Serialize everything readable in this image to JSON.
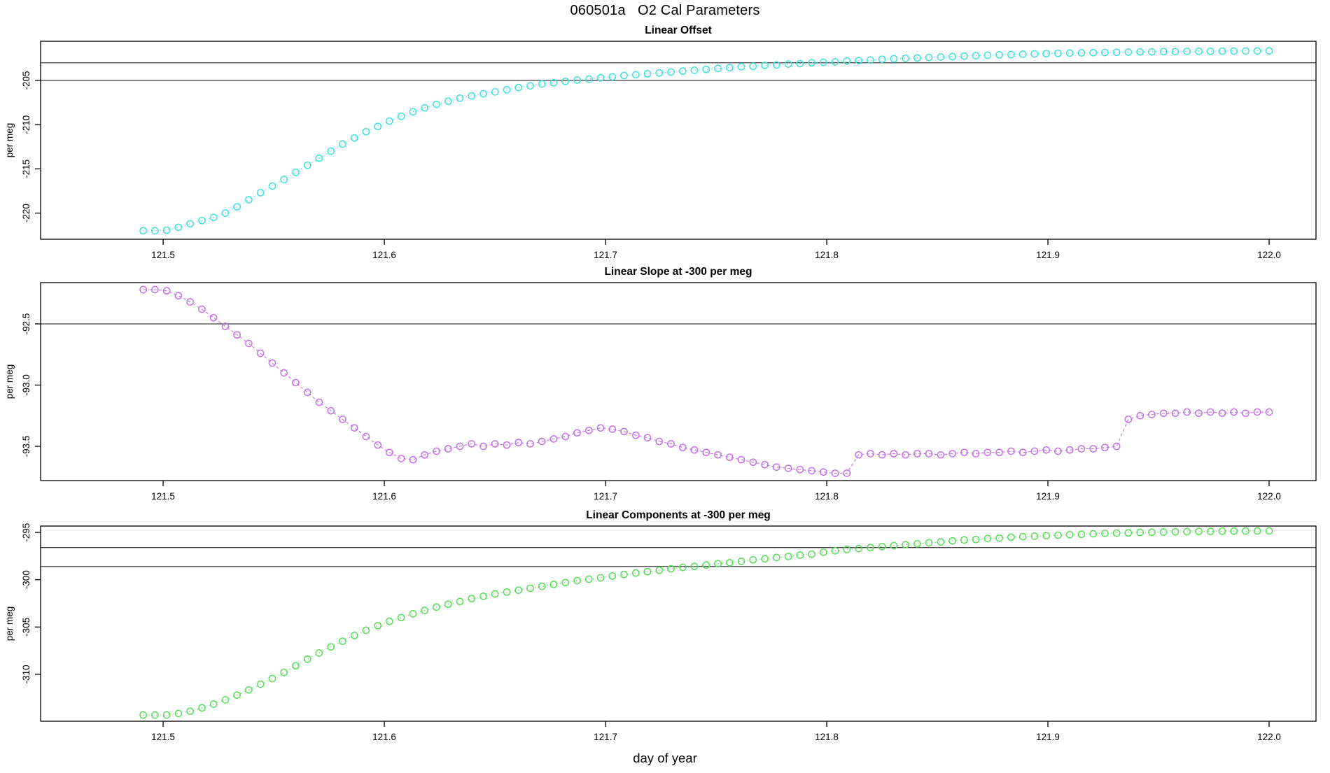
{
  "page_title": "060501a   O2 Cal Parameters",
  "xlabel": "day of year",
  "ylabel": "per meg",
  "axis_color": "#000000",
  "ref_line_color": "#3c3c3c",
  "chart_data": [
    {
      "type": "scatter",
      "title": "Linear Offset",
      "series_name": "linear-offset",
      "ylabel": "per meg",
      "color": "#3fe0e0",
      "line_style": "dotted",
      "xlim": [
        121.4446,
        122.0212
      ],
      "ylim": [
        -222.96,
        -200.57
      ],
      "x_ticks": {
        "values": [
          121.5,
          121.6,
          121.7,
          121.8,
          121.9,
          122.0
        ],
        "labels": [
          "121.5",
          "121.6",
          "121.7",
          "121.8",
          "121.9",
          "122.0"
        ]
      },
      "y_ticks": {
        "values": [
          -205,
          -210,
          -215,
          -220
        ],
        "labels": [
          "-205",
          "-210",
          "-215",
          "-220"
        ]
      },
      "ref_lines": [
        -203.0,
        -205.0
      ],
      "x_start": 121.491,
      "x_step": 0.005302,
      "values": [
        -222.0,
        -222.0,
        -221.95,
        -221.6,
        -221.2,
        -220.85,
        -220.5,
        -220.0,
        -219.3,
        -218.5,
        -217.7,
        -216.95,
        -216.2,
        -215.4,
        -214.6,
        -213.8,
        -213.0,
        -212.2,
        -211.5,
        -210.8,
        -210.2,
        -209.6,
        -209.05,
        -208.55,
        -208.1,
        -207.7,
        -207.35,
        -207.0,
        -206.75,
        -206.5,
        -206.3,
        -206.05,
        -205.8,
        -205.6,
        -205.4,
        -205.25,
        -205.1,
        -204.95,
        -204.85,
        -204.7,
        -204.6,
        -204.45,
        -204.35,
        -204.25,
        -204.15,
        -204.05,
        -203.95,
        -203.85,
        -203.75,
        -203.65,
        -203.55,
        -203.45,
        -203.4,
        -203.3,
        -203.25,
        -203.15,
        -203.1,
        -203.0,
        -202.95,
        -202.9,
        -202.8,
        -202.75,
        -202.7,
        -202.6,
        -202.55,
        -202.5,
        -202.45,
        -202.4,
        -202.35,
        -202.3,
        -202.25,
        -202.2,
        -202.15,
        -202.1,
        -202.07,
        -202.03,
        -202.0,
        -201.97,
        -201.94,
        -201.91,
        -201.88,
        -201.86,
        -201.84,
        -201.82,
        -201.8,
        -201.78,
        -201.77,
        -201.75,
        -201.74,
        -201.72,
        -201.71,
        -201.7,
        -201.69,
        -201.68,
        -201.67,
        -201.66,
        -201.65
      ]
    },
    {
      "type": "scatter",
      "title": "Linear Slope at -300 per meg",
      "series_name": "linear-slope",
      "ylabel": "per meg",
      "color": "#c96feb",
      "line_style": "dashed",
      "xlim": [
        121.4446,
        122.0212
      ],
      "ylim": [
        -93.78,
        -92.163
      ],
      "x_ticks": {
        "values": [
          121.5,
          121.6,
          121.7,
          121.8,
          121.9,
          122.0
        ],
        "labels": [
          "121.5",
          "121.6",
          "121.7",
          "121.8",
          "121.9",
          "122.0"
        ]
      },
      "y_ticks": {
        "values": [
          -92.5,
          -93.0,
          -93.5
        ],
        "labels": [
          "-92.5",
          "-93.0",
          "-93.5"
        ]
      },
      "ref_lines": [
        -92.5
      ],
      "x_start": 121.491,
      "x_step": 0.005302,
      "values": [
        -92.22,
        -92.22,
        -92.23,
        -92.27,
        -92.32,
        -92.38,
        -92.45,
        -92.52,
        -92.59,
        -92.66,
        -92.74,
        -92.82,
        -92.9,
        -92.98,
        -93.06,
        -93.14,
        -93.21,
        -93.28,
        -93.35,
        -93.42,
        -93.49,
        -93.55,
        -93.6,
        -93.61,
        -93.57,
        -93.54,
        -93.52,
        -93.5,
        -93.48,
        -93.5,
        -93.48,
        -93.49,
        -93.47,
        -93.48,
        -93.46,
        -93.44,
        -93.42,
        -93.39,
        -93.37,
        -93.35,
        -93.36,
        -93.38,
        -93.41,
        -93.43,
        -93.46,
        -93.48,
        -93.51,
        -93.53,
        -93.55,
        -93.57,
        -93.59,
        -93.61,
        -93.63,
        -93.65,
        -93.67,
        -93.68,
        -93.69,
        -93.7,
        -93.71,
        -93.72,
        -93.72,
        -93.57,
        -93.56,
        -93.57,
        -93.56,
        -93.57,
        -93.56,
        -93.56,
        -93.57,
        -93.56,
        -93.55,
        -93.56,
        -93.55,
        -93.55,
        -93.54,
        -93.55,
        -93.54,
        -93.53,
        -93.54,
        -93.53,
        -93.52,
        -93.52,
        -93.51,
        -93.5,
        -93.28,
        -93.25,
        -93.24,
        -93.23,
        -93.23,
        -93.22,
        -93.23,
        -93.22,
        -93.23,
        -93.22,
        -93.23,
        -93.22,
        -93.22
      ]
    },
    {
      "type": "scatter",
      "title": "Linear Components at -300 per meg",
      "series_name": "linear-components",
      "ylabel": "per meg",
      "color": "#56de56",
      "line_style": "dotted",
      "xlim": [
        121.4446,
        122.0212
      ],
      "ylim": [
        -314.96,
        -294.33
      ],
      "x_ticks": {
        "values": [
          121.5,
          121.6,
          121.7,
          121.8,
          121.9,
          122.0
        ],
        "labels": [
          "121.5",
          "121.6",
          "121.7",
          "121.8",
          "121.9",
          "122.0"
        ]
      },
      "y_ticks": {
        "values": [
          -295,
          -300,
          -305,
          -310
        ],
        "labels": [
          "-295",
          "-300",
          "-305",
          "-310"
        ]
      },
      "ref_lines": [
        -296.6,
        -298.6
      ],
      "x_start": 121.491,
      "x_step": 0.005302,
      "values": [
        -314.3,
        -314.3,
        -314.3,
        -314.15,
        -313.9,
        -313.55,
        -313.15,
        -312.7,
        -312.2,
        -311.65,
        -311.05,
        -310.45,
        -309.8,
        -309.1,
        -308.4,
        -307.75,
        -307.1,
        -306.5,
        -305.9,
        -305.35,
        -304.85,
        -304.4,
        -304.0,
        -303.6,
        -303.25,
        -302.9,
        -302.6,
        -302.3,
        -302.0,
        -301.75,
        -301.5,
        -301.3,
        -301.1,
        -300.9,
        -300.7,
        -300.5,
        -300.3,
        -300.1,
        -299.95,
        -299.8,
        -299.6,
        -299.45,
        -299.3,
        -299.15,
        -299.0,
        -298.85,
        -298.7,
        -298.6,
        -298.45,
        -298.3,
        -298.2,
        -298.05,
        -297.9,
        -297.8,
        -297.65,
        -297.55,
        -297.4,
        -297.3,
        -297.1,
        -296.95,
        -296.8,
        -296.7,
        -296.6,
        -296.5,
        -296.4,
        -296.3,
        -296.2,
        -296.1,
        -296.0,
        -295.9,
        -295.8,
        -295.75,
        -295.65,
        -295.6,
        -295.5,
        -295.45,
        -295.4,
        -295.35,
        -295.3,
        -295.25,
        -295.2,
        -295.15,
        -295.1,
        -295.08,
        -295.05,
        -295.0,
        -294.98,
        -294.96,
        -294.94,
        -294.92,
        -294.9,
        -294.89,
        -294.88,
        -294.87,
        -294.86,
        -294.85,
        -294.85
      ]
    }
  ]
}
